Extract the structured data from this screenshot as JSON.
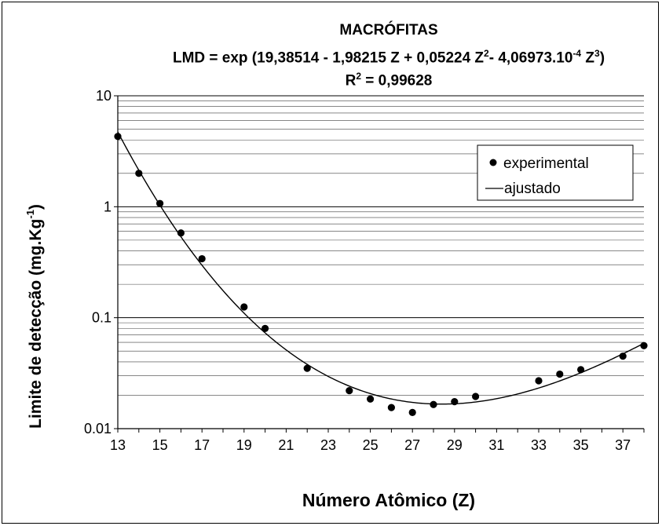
{
  "chart_data": {
    "type": "scatter",
    "title": "MACRÓFITAS",
    "subtitle_equation": {
      "p1": "LMD = exp (19,38514 - 1,98215 Z + 0,05224 Z",
      "e1": "2",
      "p2": "- 4,06973.10",
      "e2": "-4",
      "p3": " Z",
      "e3": "3",
      "p4": ")"
    },
    "r2": {
      "p1": "R",
      "e1": "2",
      "p2": " = 0,99628"
    },
    "xlabel": "Número Atômico (Z)",
    "ylabel": "Limite de detecção (mg.Kg",
    "ylabel_sup": "-1",
    "ylabel_end": ")",
    "xlim": [
      13,
      38
    ],
    "ylim": [
      0.01,
      10
    ],
    "y_scale": "log",
    "x_ticks": [
      13,
      15,
      17,
      19,
      21,
      23,
      25,
      27,
      29,
      31,
      33,
      35,
      37
    ],
    "y_ticks": [
      {
        "value": 0.01,
        "label": "0.01"
      },
      {
        "value": 0.1,
        "label": "0.1"
      },
      {
        "value": 1,
        "label": "1"
      },
      {
        "value": 10,
        "label": "10"
      }
    ],
    "grid": true,
    "legend_position": "top-right",
    "series": [
      {
        "name": "experimental",
        "style": "markers",
        "color": "#000000",
        "points": [
          [
            13,
            4.3
          ],
          [
            14,
            2.0
          ],
          [
            15,
            1.07
          ],
          [
            16,
            0.58
          ],
          [
            17,
            0.34
          ],
          [
            19,
            0.125
          ],
          [
            20,
            0.08
          ],
          [
            22,
            0.035
          ],
          [
            24,
            0.022
          ],
          [
            25,
            0.0185
          ],
          [
            26,
            0.0155
          ],
          [
            27,
            0.014
          ],
          [
            28,
            0.0165
          ],
          [
            29,
            0.0175
          ],
          [
            30,
            0.0195
          ],
          [
            33,
            0.027
          ],
          [
            34,
            0.031
          ],
          [
            35,
            0.034
          ],
          [
            37,
            0.045
          ],
          [
            38,
            0.056
          ]
        ]
      },
      {
        "name": "ajustado",
        "style": "line",
        "color": "#000000",
        "coefficients": [
          19.38514,
          -1.98215,
          0.05224,
          -0.000406973
        ]
      }
    ]
  }
}
